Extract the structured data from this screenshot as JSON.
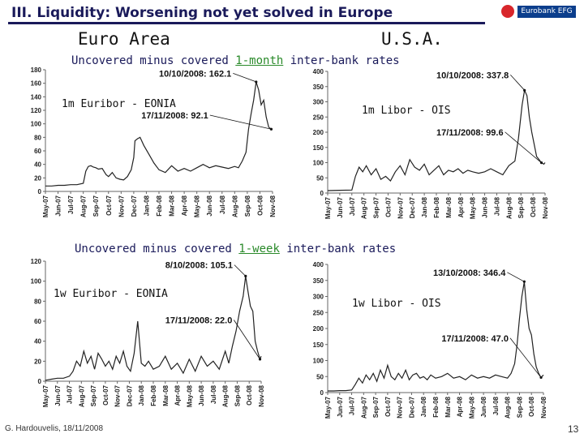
{
  "header": {
    "title": "III.  Liquidity:  Worsening not yet solved in Europe",
    "logo_text": "Eurobank EFG"
  },
  "regions": {
    "left": "Euro Area",
    "right": "U.S.A."
  },
  "sections": {
    "month": {
      "pre": "Uncovered minus covered ",
      "hl": "1-month",
      "post": " inter-bank rates"
    },
    "week": {
      "pre": "Uncovered minus covered ",
      "hl": "1-week",
      "post": " inter-bank rates"
    }
  },
  "footer": {
    "author": "G. Hardouvelis, 18/11/2008",
    "page": "13"
  },
  "colors": {
    "title": "#1a1a5a",
    "line": "#222222",
    "accent_green": "#2a8a2a",
    "logo_red": "#d8262b",
    "logo_blue": "#0b3e8c"
  },
  "chart_data": [
    {
      "id": "m_eu",
      "type": "line",
      "label": "1m Euribor - EONIA",
      "ylim": [
        0,
        180
      ],
      "yticks": [
        0,
        20,
        40,
        60,
        80,
        100,
        120,
        140,
        160,
        180
      ],
      "categories": [
        "May-07",
        "Jun-07",
        "Jul-07",
        "Aug-07",
        "Sep-07",
        "Oct-07",
        "Nov-07",
        "Dec-07",
        "Jan-08",
        "Feb-08",
        "Mar-08",
        "Apr-08",
        "May-08",
        "Jun-08",
        "Jul-08",
        "Aug-08",
        "Sep-08",
        "Oct-08",
        "Nov-08"
      ],
      "x": [
        0,
        0.5,
        1,
        1.5,
        2,
        2.5,
        3,
        3.2,
        3.4,
        3.6,
        3.8,
        4,
        4.2,
        4.5,
        4.8,
        5,
        5.3,
        5.6,
        5.9,
        6.2,
        6.5,
        6.8,
        7,
        7.1,
        7.3,
        7.5,
        7.8,
        8.2,
        8.6,
        9,
        9.5,
        10,
        10.5,
        11,
        11.5,
        12,
        12.5,
        13,
        13.5,
        14,
        14.5,
        15,
        15.3,
        15.6,
        15.9,
        16.1,
        16.3,
        16.5,
        16.7,
        16.9,
        17.1,
        17.3,
        17.5,
        17.7,
        17.9,
        18
      ],
      "values": [
        8,
        8,
        9,
        9,
        10,
        10,
        12,
        30,
        37,
        38,
        36,
        35,
        33,
        34,
        25,
        22,
        28,
        20,
        18,
        17,
        22,
        32,
        50,
        75,
        78,
        80,
        68,
        55,
        42,
        32,
        28,
        38,
        30,
        34,
        30,
        35,
        40,
        35,
        38,
        36,
        34,
        37,
        35,
        45,
        58,
        92,
        115,
        135,
        162.1,
        150,
        128,
        135,
        110,
        95,
        92.1,
        92
      ],
      "annotations": [
        {
          "text": "10/10/2008: 162.1",
          "x": 16.7,
          "y": 162.1,
          "tx": 9.0,
          "ty": 170
        },
        {
          "text": "17/11/2008: 92.1",
          "x": 17.9,
          "y": 92.1,
          "tx": 7.6,
          "ty": 108
        }
      ]
    },
    {
      "id": "m_us",
      "type": "line",
      "label": "1m Libor - OIS",
      "ylim": [
        0,
        400
      ],
      "yticks": [
        0,
        50,
        100,
        150,
        200,
        250,
        300,
        350,
        400
      ],
      "categories": [
        "May-07",
        "Jun-07",
        "Jul-07",
        "Aug-07",
        "Sep-07",
        "Oct-07",
        "Nov-07",
        "Dec-07",
        "Jan-08",
        "Feb-08",
        "Mar-08",
        "Apr-08",
        "May-08",
        "Jun-08",
        "Jul-08",
        "Aug-08",
        "Sep-08",
        "Oct-08",
        "Nov-08"
      ],
      "x": [
        0,
        1,
        2,
        2.3,
        2.6,
        2.9,
        3.2,
        3.6,
        4,
        4.4,
        4.8,
        5.2,
        5.6,
        6,
        6.4,
        6.8,
        7.2,
        7.6,
        8,
        8.4,
        8.8,
        9.2,
        9.6,
        10,
        10.4,
        10.8,
        11.2,
        11.6,
        12,
        12.5,
        13,
        13.5,
        14,
        14.5,
        15,
        15.5,
        15.8,
        16.1,
        16.3,
        16.5,
        16.7,
        16.9,
        17.1,
        17.3,
        17.5,
        17.7,
        17.9,
        18
      ],
      "values": [
        8,
        9,
        10,
        55,
        85,
        70,
        90,
        60,
        80,
        45,
        55,
        40,
        70,
        90,
        60,
        110,
        85,
        75,
        95,
        60,
        75,
        90,
        60,
        75,
        70,
        80,
        65,
        75,
        70,
        65,
        70,
        80,
        70,
        60,
        90,
        105,
        180,
        290,
        337.8,
        320,
        250,
        200,
        160,
        120,
        110,
        99.6,
        95,
        100
      ],
      "annotations": [
        {
          "text": "10/10/2008: 337.8",
          "x": 16.3,
          "y": 337.8,
          "tx": 9.0,
          "ty": 378
        },
        {
          "text": "17/11/2008: 99.6",
          "x": 17.7,
          "y": 99.6,
          "tx": 9.0,
          "ty": 190
        }
      ]
    },
    {
      "id": "w_eu",
      "type": "line",
      "label": "1w Euribor - EONIA",
      "ylim": [
        0,
        120
      ],
      "yticks": [
        0,
        20,
        40,
        60,
        80,
        100,
        120
      ],
      "categories": [
        "May-07",
        "Jun-07",
        "Jul-07",
        "Aug-07",
        "Sep-07",
        "Oct-07",
        "Nov-07",
        "Dec-07",
        "Jan-08",
        "Feb-08",
        "Mar-08",
        "Apr-08",
        "May-08",
        "Jun-08",
        "Jul-08",
        "Aug-08",
        "Sep-08",
        "Oct-08",
        "Nov-08"
      ],
      "x": [
        0,
        0.5,
        1,
        1.5,
        2,
        2.3,
        2.6,
        2.9,
        3.2,
        3.5,
        3.8,
        4.1,
        4.4,
        4.7,
        5,
        5.3,
        5.6,
        5.9,
        6.2,
        6.5,
        6.8,
        7.1,
        7.4,
        7.7,
        8,
        8.3,
        8.6,
        9,
        9.5,
        10,
        10.5,
        11,
        11.5,
        12,
        12.5,
        13,
        13.5,
        14,
        14.5,
        15,
        15.3,
        15.6,
        15.9,
        16.2,
        16.5,
        16.7,
        16.9,
        17.1,
        17.3,
        17.5,
        17.7,
        17.9,
        18
      ],
      "values": [
        1,
        2,
        3,
        3,
        5,
        10,
        20,
        15,
        30,
        18,
        25,
        12,
        28,
        22,
        15,
        20,
        12,
        25,
        18,
        30,
        15,
        10,
        28,
        60,
        18,
        15,
        20,
        12,
        15,
        25,
        12,
        18,
        8,
        22,
        10,
        25,
        15,
        20,
        12,
        30,
        18,
        35,
        50,
        70,
        85,
        105.1,
        90,
        75,
        70,
        40,
        30,
        22,
        25
      ],
      "annotations": [
        {
          "text": "8/10/2008: 105.1",
          "x": 16.7,
          "y": 105.1,
          "tx": 10.0,
          "ty": 113
        },
        {
          "text": "17/11/2008: 22.0",
          "x": 17.9,
          "y": 22,
          "tx": 10.0,
          "ty": 58
        }
      ]
    },
    {
      "id": "w_us",
      "type": "line",
      "label": "1w Libor - OIS",
      "ylim": [
        0,
        400
      ],
      "yticks": [
        0,
        50,
        100,
        150,
        200,
        250,
        300,
        350,
        400
      ],
      "categories": [
        "May-07",
        "Jun-07",
        "Jul-07",
        "Aug-07",
        "Sep-07",
        "Oct-07",
        "Nov-07",
        "Dec-07",
        "Jan-08",
        "Feb-08",
        "Mar-08",
        "Apr-08",
        "May-08",
        "Jun-08",
        "Jul-08",
        "Aug-08",
        "Sep-08",
        "Oct-08",
        "Nov-08"
      ],
      "x": [
        0,
        0.5,
        1,
        1.5,
        2,
        2.3,
        2.6,
        2.9,
        3.2,
        3.5,
        3.8,
        4.1,
        4.4,
        4.7,
        5,
        5.3,
        5.6,
        5.9,
        6.2,
        6.5,
        6.8,
        7.1,
        7.4,
        7.7,
        8,
        8.3,
        8.6,
        9,
        9.5,
        10,
        10.5,
        11,
        11.5,
        12,
        12.5,
        13,
        13.5,
        14,
        14.5,
        15,
        15.3,
        15.6,
        15.8,
        16,
        16.2,
        16.4,
        16.6,
        16.8,
        17,
        17.2,
        17.4,
        17.6,
        17.8,
        18
      ],
      "values": [
        5,
        5,
        6,
        6,
        8,
        25,
        45,
        30,
        55,
        40,
        60,
        35,
        70,
        45,
        85,
        50,
        40,
        60,
        45,
        70,
        40,
        55,
        60,
        45,
        50,
        40,
        55,
        45,
        50,
        60,
        45,
        50,
        40,
        55,
        45,
        50,
        45,
        55,
        50,
        45,
        60,
        90,
        150,
        230,
        300,
        346.4,
        260,
        200,
        180,
        120,
        80,
        60,
        47,
        55
      ],
      "annotations": [
        {
          "text": "13/10/2008: 346.4",
          "x": 16.4,
          "y": 346.4,
          "tx": 8.8,
          "ty": 365
        },
        {
          "text": "17/11/2008: 47.0",
          "x": 17.8,
          "y": 47,
          "tx": 9.5,
          "ty": 160
        }
      ]
    }
  ]
}
